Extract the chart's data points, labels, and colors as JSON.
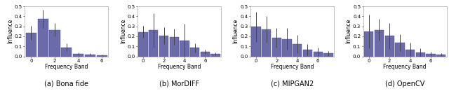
{
  "charts": [
    {
      "title": "(a) Bona fide",
      "bar_values": [
        0.235,
        0.375,
        0.265,
        0.09,
        0.025,
        0.02,
        0.01
      ],
      "bar_errors": [
        0.07,
        0.09,
        0.065,
        0.04,
        0.015,
        0.01,
        0.005
      ],
      "x_ticks": [
        0,
        2,
        4,
        6
      ],
      "ylim": [
        0,
        0.5
      ]
    },
    {
      "title": "(b) MorDIFF",
      "bar_values": [
        0.245,
        0.26,
        0.205,
        0.195,
        0.155,
        0.085,
        0.045,
        0.025
      ],
      "bar_errors": [
        0.06,
        0.17,
        0.085,
        0.08,
        0.17,
        0.045,
        0.02,
        0.012
      ],
      "x_ticks": [
        0,
        2,
        4,
        6
      ],
      "ylim": [
        0,
        0.5
      ]
    },
    {
      "title": "(c) MIPGAN2",
      "bar_values": [
        0.295,
        0.27,
        0.185,
        0.175,
        0.125,
        0.065,
        0.045,
        0.03
      ],
      "bar_errors": [
        0.15,
        0.13,
        0.1,
        0.11,
        0.09,
        0.055,
        0.04,
        0.025
      ],
      "x_ticks": [
        0,
        2,
        4,
        6
      ],
      "ylim": [
        0,
        0.5
      ]
    },
    {
      "title": "(d) OpenCV",
      "bar_values": [
        0.25,
        0.265,
        0.205,
        0.135,
        0.07,
        0.04,
        0.025,
        0.018
      ],
      "bar_errors": [
        0.17,
        0.11,
        0.13,
        0.085,
        0.065,
        0.04,
        0.022,
        0.012
      ],
      "x_ticks": [
        0,
        2,
        4,
        6
      ],
      "ylim": [
        0,
        0.5
      ]
    }
  ],
  "bar_color": "#6b6baa",
  "bar_edge_color": "#4a4a7a",
  "error_color": "#444444",
  "ylabel": "Influence",
  "xlabel": "Frequency Band",
  "fig_width": 6.4,
  "fig_height": 1.3,
  "dpi": 100,
  "title_fontsize": 7,
  "axis_fontsize": 5.5,
  "tick_fontsize": 5
}
